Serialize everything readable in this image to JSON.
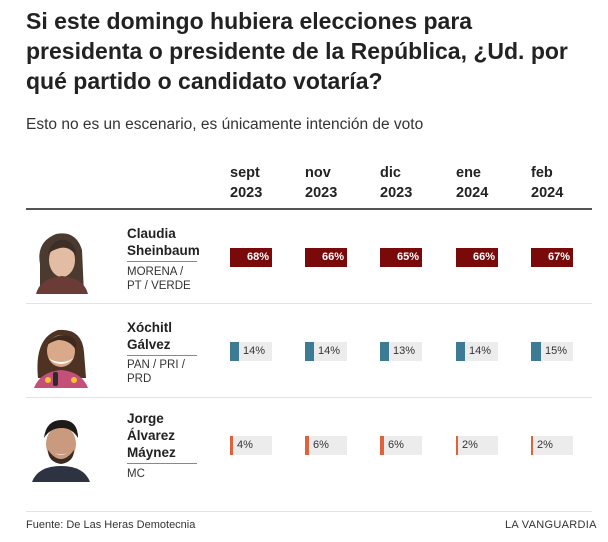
{
  "title": "Si este domingo hubiera elecciones para presidenta o presidente de la República, ¿Ud. por qué partido o candidato votaría?",
  "subtitle": "Esto no es un escenario, es únicamente intención de voto",
  "months": [
    {
      "label": "sept",
      "year": "2023"
    },
    {
      "label": "nov",
      "year": "2023"
    },
    {
      "label": "dic",
      "year": "2023"
    },
    {
      "label": "ene",
      "year": "2024"
    },
    {
      "label": "feb",
      "year": "2024"
    }
  ],
  "chart_data": {
    "type": "table",
    "categories": [
      "sept 2023",
      "nov 2023",
      "dic 2023",
      "ene 2024",
      "feb 2024"
    ],
    "value_unit": "%",
    "series": [
      {
        "name": "Claudia Sheinbaum",
        "party": "MORENA / PT / VERDE",
        "values": [
          68,
          66,
          65,
          66,
          67
        ],
        "color": "#7a0a0a"
      },
      {
        "name": "Xóchitl Gálvez",
        "party": "PAN / PRI / PRD",
        "values": [
          14,
          14,
          13,
          14,
          15
        ],
        "color": "#3d7a94"
      },
      {
        "name": "Jorge Álvarez Máynez",
        "party": "MC",
        "values": [
          4,
          6,
          6,
          2,
          2
        ],
        "color": "#e0623a"
      }
    ]
  },
  "candidates": [
    {
      "name_lines": [
        "Claudia",
        "Sheinbaum"
      ],
      "party_lines": [
        "MORENA /",
        "PT / VERDE"
      ],
      "photo": "claudia-sheinbaum-photo"
    },
    {
      "name_lines": [
        "Xóchitl",
        "Gálvez"
      ],
      "party_lines": [
        "PAN / PRI /",
        "PRD"
      ],
      "photo": "xochitl-galvez-photo"
    },
    {
      "name_lines": [
        "Jorge",
        "Álvarez",
        "Máynez"
      ],
      "party_lines": [
        "MC"
      ],
      "photo": "jorge-alvarez-maynez-photo"
    }
  ],
  "footer": {
    "source": "Fuente: De Las Heras Demotecnia",
    "brand": "LA VANGUARDIA"
  }
}
